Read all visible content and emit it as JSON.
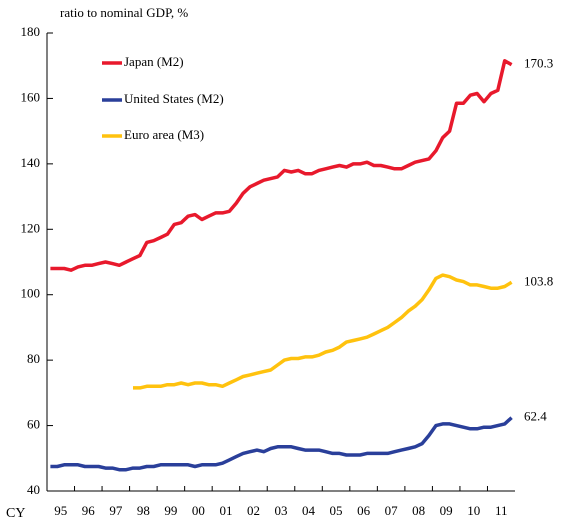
{
  "chart_data": {
    "type": "line",
    "y_label": "ratio to nominal GDP, %",
    "x_prefix": "CY",
    "categories": [
      "95",
      null,
      null,
      null,
      "96",
      null,
      null,
      null,
      "97",
      null,
      null,
      null,
      "98",
      null,
      null,
      null,
      "99",
      null,
      null,
      null,
      "00",
      null,
      null,
      null,
      "01",
      null,
      null,
      null,
      "02",
      null,
      null,
      null,
      "03",
      null,
      null,
      null,
      "04",
      null,
      null,
      null,
      "05",
      null,
      null,
      null,
      "06",
      null,
      null,
      null,
      "07",
      null,
      null,
      null,
      "08",
      null,
      null,
      null,
      "09",
      null,
      null,
      null,
      "10",
      null,
      null,
      null,
      "11",
      null,
      null,
      null
    ],
    "series": [
      {
        "name": "Japan (M2)",
        "color": "#e8192c",
        "values": [
          108,
          108,
          108,
          107.5,
          108.5,
          109,
          109,
          109.5,
          110,
          109.5,
          109,
          110,
          111,
          112,
          116,
          116.5,
          117.5,
          118.5,
          121.5,
          122,
          124,
          124.5,
          123,
          124,
          125,
          125,
          125.5,
          128,
          131,
          133,
          134,
          135,
          135.5,
          136,
          138,
          137.5,
          138,
          137,
          137,
          138,
          138.5,
          139,
          139.5,
          139,
          140,
          140,
          140.5,
          139.5,
          139.5,
          139,
          138.5,
          138.5,
          139.5,
          140.5,
          141,
          141.5,
          144,
          148,
          150,
          158.5,
          158.5,
          161,
          161.5,
          159,
          161.5,
          162.5,
          171.5,
          170.3
        ]
      },
      {
        "name": "United States (M2)",
        "color": "#2a3f9a",
        "values": [
          47.5,
          47.5,
          48,
          48,
          48,
          47.5,
          47.5,
          47.5,
          47,
          47,
          46.5,
          46.5,
          47,
          47,
          47.5,
          47.5,
          48,
          48,
          48,
          48,
          48,
          47.5,
          48,
          48,
          48,
          48.5,
          49.5,
          50.5,
          51.5,
          52,
          52.5,
          52,
          53,
          53.5,
          53.5,
          53.5,
          53,
          52.5,
          52.5,
          52.5,
          52,
          51.5,
          51.5,
          51,
          51,
          51,
          51.5,
          51.5,
          51.5,
          51.5,
          52,
          52.5,
          53,
          53.5,
          54.5,
          57,
          60,
          60.5,
          60.5,
          60,
          59.5,
          59,
          59,
          59.5,
          59.5,
          60,
          60.5,
          62.4
        ]
      },
      {
        "name": "Euro area (M3)",
        "color": "#ffc20e",
        "values": [
          null,
          null,
          null,
          null,
          null,
          null,
          null,
          null,
          null,
          null,
          null,
          null,
          71.5,
          71.5,
          72,
          72,
          72,
          72.5,
          72.5,
          73,
          72.5,
          73,
          73,
          72.5,
          72.5,
          72,
          73,
          74,
          75,
          75.5,
          76,
          76.5,
          77,
          78.5,
          80,
          80.5,
          80.5,
          81,
          81,
          81.5,
          82.5,
          83,
          84,
          85.5,
          86,
          86.5,
          87,
          88,
          89,
          90,
          91.5,
          93,
          95,
          96.5,
          98.5,
          101.5,
          105,
          106,
          105.5,
          104.5,
          104,
          103,
          103,
          102.5,
          102,
          102,
          102.5,
          103.8
        ]
      }
    ],
    "ylim": [
      40,
      180
    ],
    "yticks": [
      40,
      60,
      80,
      100,
      120,
      140,
      160,
      180
    ],
    "grid": false
  }
}
